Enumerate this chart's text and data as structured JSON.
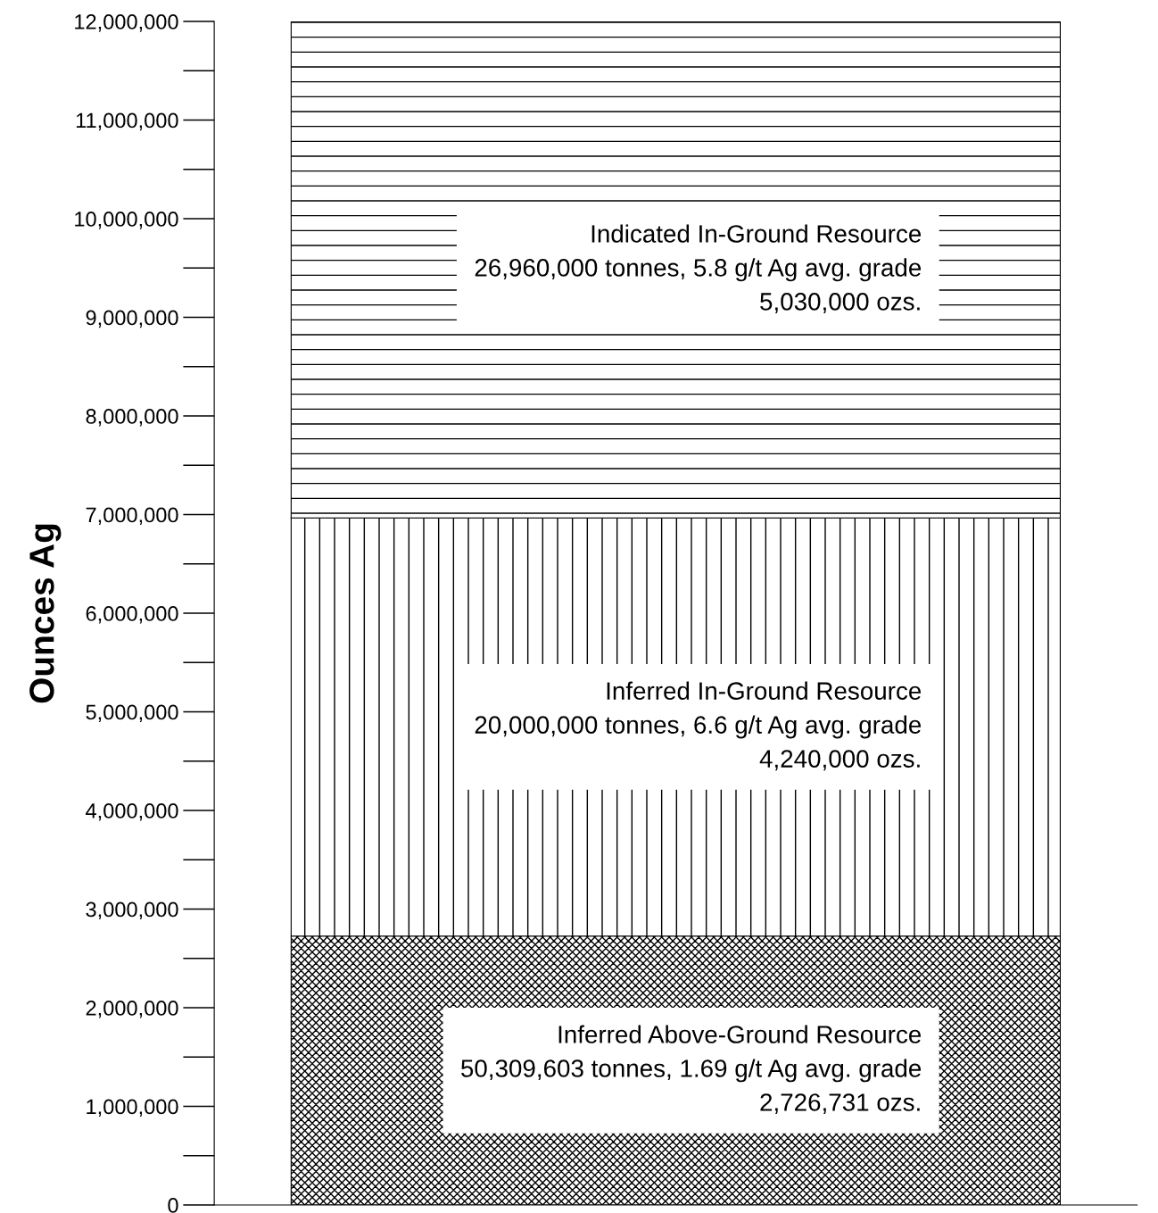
{
  "chart_data": {
    "type": "bar",
    "stacked": true,
    "categories": [
      null
    ],
    "ylabel": "Ounces Ag",
    "series": [
      {
        "color": "#000000",
        "values": [
          2726731
        ]
      },
      {
        "color": "#000000",
        "values": [
          4240000
        ]
      },
      {
        "color": "#000000",
        "values": [
          5030000
        ]
      }
    ],
    "annotations": [
      "Inferred Above-Ground Resource\n50,309,603 tonnes, 1.69 g/t Ag avg. grade\n2,726,731 ozs.",
      "Inferred In-Ground Resource\n20,000,000 tonnes, 6.6 g/t Ag avg. grade\n4,240,000 ozs.",
      "Indicated In-Ground Resource\n26,960,000 tonnes, 5.8 g/t Ag avg. grade\n5,030,000 ozs."
    ],
    "ylim": [
      0,
      12000000
    ],
    "yticks": [
      0,
      {
        "value": 1000000,
        "label": "1,000,000"
      },
      {
        "value": 2000000,
        "label": "2,000,000"
      },
      {
        "value": 3000000,
        "label": "3,000,000"
      },
      {
        "value": 4000000,
        "label": "4,000,000"
      },
      {
        "value": 5000000,
        "label": "5,000,000"
      },
      {
        "value": 6000000,
        "label": "6,000,000"
      },
      {
        "value": 7000000,
        "label": "7,000,000"
      },
      {
        "value": 8000000,
        "label": "8,000,000"
      },
      {
        "value": 9000000,
        "label": "9,000,000"
      },
      {
        "value": 10000000,
        "label": "10,000,000"
      },
      {
        "value": 11000000,
        "label": "11,000,000"
      },
      {
        "value": 12000000,
        "label": "12,000,000"
      }
    ],
    "grid": false,
    "legend": false
  }
}
